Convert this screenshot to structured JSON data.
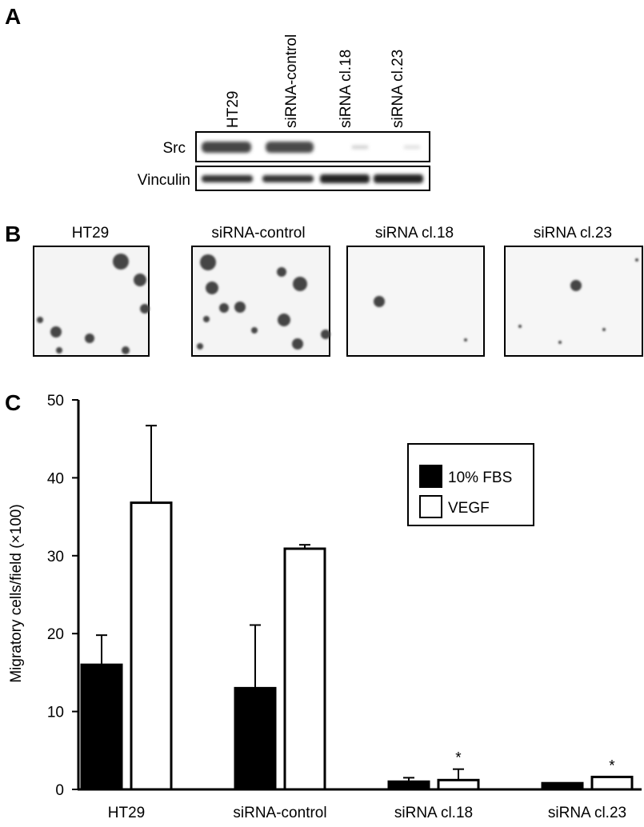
{
  "panel_a": {
    "label": "A",
    "lanes": [
      "HT29",
      "siRNA-control",
      "siRNA cl.18",
      "siRNA cl.23"
    ],
    "rows": [
      "Src",
      "Vinculin"
    ]
  },
  "panel_b": {
    "label": "B",
    "titles": [
      "HT29",
      "siRNA-control",
      "siRNA cl.18",
      "siRNA cl.23"
    ]
  },
  "panel_c": {
    "label": "C"
  },
  "chart_data": {
    "type": "bar",
    "y_label": "Migratory cells/field (×100)",
    "categories": [
      "HT29",
      "siRNA-control",
      "siRNA cl.18",
      "siRNA cl.23"
    ],
    "series": [
      {
        "name": "10% FBS",
        "color": "#000000",
        "values": [
          16,
          13,
          1,
          0.8
        ],
        "errors": [
          3.8,
          8.1,
          0.5,
          0
        ]
      },
      {
        "name": "VEGF",
        "color": "#ffffff",
        "values": [
          36.8,
          30.9,
          1.2,
          1.6
        ],
        "errors": [
          9.9,
          0.5,
          1.4,
          0
        ]
      }
    ],
    "annotations": [
      {
        "text": "*",
        "series": "VEGF",
        "category": "siRNA cl.18"
      },
      {
        "text": "*",
        "series": "VEGF",
        "category": "siRNA cl.23"
      }
    ],
    "ylim": [
      0,
      50
    ],
    "yticks": [
      0,
      10,
      20,
      30,
      40,
      50
    ],
    "legend": "upper right",
    "grid": false
  }
}
